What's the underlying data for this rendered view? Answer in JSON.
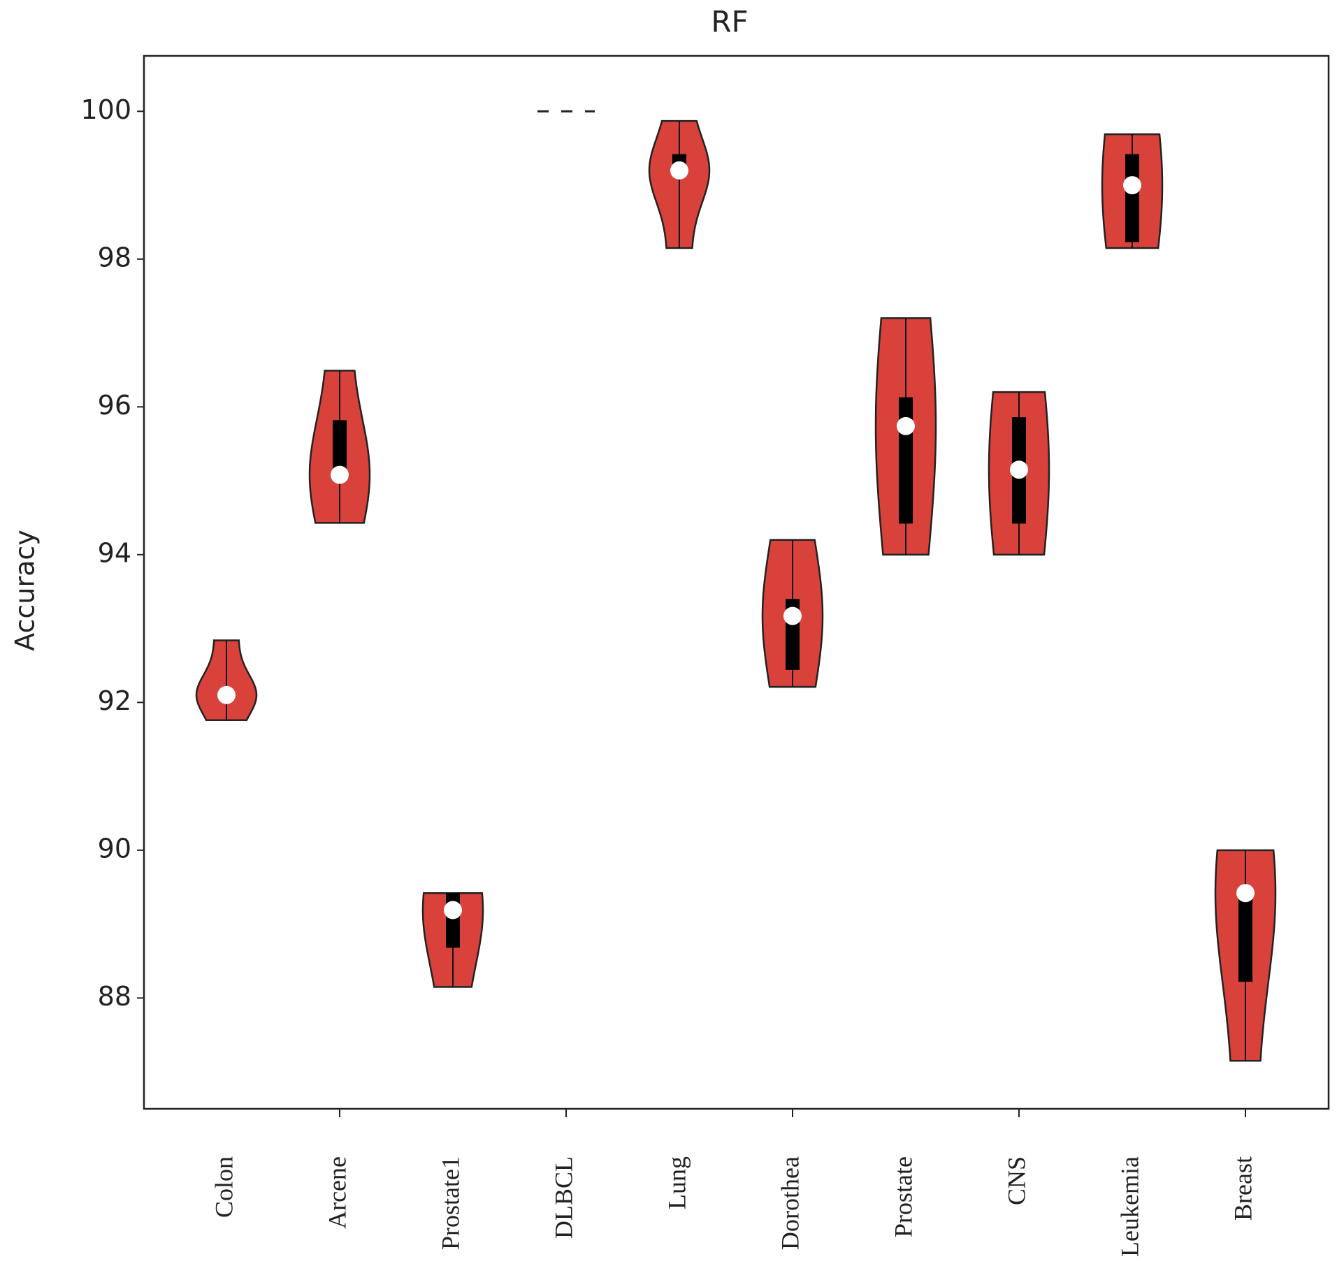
{
  "chart_data": {
    "type": "violin",
    "title": "RF",
    "y_label": "Accuracy",
    "categories": [
      "Colon",
      "Arcene",
      "Prostate1",
      "DLBCL",
      "Lung",
      "Dorothea",
      "Prostate",
      "CNS",
      "Leukemia",
      "Breast"
    ],
    "min": [
      91.76,
      94.43,
      88.15,
      100,
      98.15,
      92.21,
      94.0,
      94.0,
      98.15,
      87.15
    ],
    "q1": [
      92.05,
      95.08,
      88.68,
      100,
      99.2,
      92.44,
      94.42,
      94.42,
      98.23,
      88.22
    ],
    "median": [
      92.1,
      95.08,
      89.19,
      100,
      99.2,
      93.17,
      95.74,
      95.15,
      99.0,
      89.42
    ],
    "q3": [
      92.15,
      95.82,
      89.42,
      100,
      99.42,
      93.4,
      96.13,
      95.86,
      99.42,
      89.42
    ],
    "max": [
      92.84,
      96.49,
      89.42,
      100,
      99.87,
      94.2,
      97.2,
      96.2,
      99.69,
      90.0
    ],
    "color": "#d9413b",
    "ylim": [
      86.5,
      100.75
    ],
    "yticks": [
      88,
      90,
      92,
      94,
      96,
      98,
      100
    ]
  }
}
